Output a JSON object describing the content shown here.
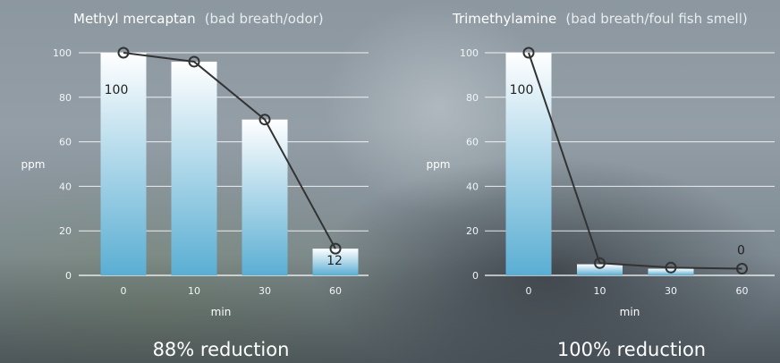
{
  "chart_data": [
    {
      "type": "bar",
      "title": "Methyl mercaptan",
      "subtitle": "(bad breath/odor)",
      "categories": [
        "0",
        "10",
        "30",
        "60"
      ],
      "values": [
        100,
        96,
        70,
        12
      ],
      "line_values": [
        100,
        96,
        70,
        12
      ],
      "data_labels": [
        "100",
        "",
        "",
        "12"
      ],
      "xlabel": "min",
      "ylabel": "ppm",
      "ylim": [
        0,
        100
      ],
      "yticks": [
        "0",
        "20",
        "40",
        "60",
        "80",
        "100"
      ],
      "grid": true,
      "footer": "88% reduction"
    },
    {
      "type": "bar",
      "title": "Trimethylamine",
      "subtitle": "(bad breath/foul fish smell)",
      "categories": [
        "0",
        "10",
        "30",
        "60"
      ],
      "values": [
        100,
        5,
        3,
        0
      ],
      "line_values": [
        100,
        5.5,
        3.5,
        3
      ],
      "data_labels": [
        "100",
        "",
        "",
        "0"
      ],
      "xlabel": "min",
      "ylabel": "ppm",
      "ylim": [
        0,
        100
      ],
      "yticks": [
        "0",
        "20",
        "40",
        "60",
        "80",
        "100"
      ],
      "grid": true,
      "footer": "100% reduction"
    }
  ],
  "colors": {
    "bar_top": "#ffffff",
    "bar_bottom": "#5aaed3",
    "line": "#333333",
    "text": "#ffffff"
  }
}
